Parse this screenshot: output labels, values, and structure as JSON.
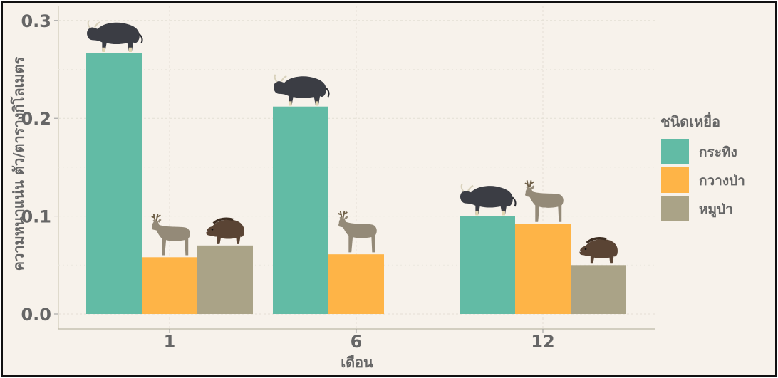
{
  "chart_data": {
    "type": "bar",
    "xlabel": "เดือน",
    "ylabel": "ความหนาแน่น ตัว/ตารางกิโลเมตร",
    "ylim": [
      0,
      0.3
    ],
    "yticks": [
      "0.0",
      "0.1",
      "0.2",
      "0.3"
    ],
    "yticks_values": [
      0,
      0.1,
      0.2,
      0.3
    ],
    "categories": [
      "1",
      "6",
      "12"
    ],
    "legend_title": "ชนิดเหยื่อ",
    "legend_position": "right",
    "grid": true,
    "series": [
      {
        "name": "กระทิง",
        "color": "#62bba5",
        "icon": "gaur-icon",
        "values": [
          0.267,
          0.212,
          0.1
        ]
      },
      {
        "name": "กวางป่า",
        "color": "#feb447",
        "icon": "sambar-deer-icon",
        "values": [
          0.058,
          0.061,
          0.092
        ]
      },
      {
        "name": "หมูป่า",
        "color": "#aaa387",
        "icon": "wild-boar-icon",
        "values": [
          0.07,
          null,
          0.05
        ]
      }
    ]
  }
}
